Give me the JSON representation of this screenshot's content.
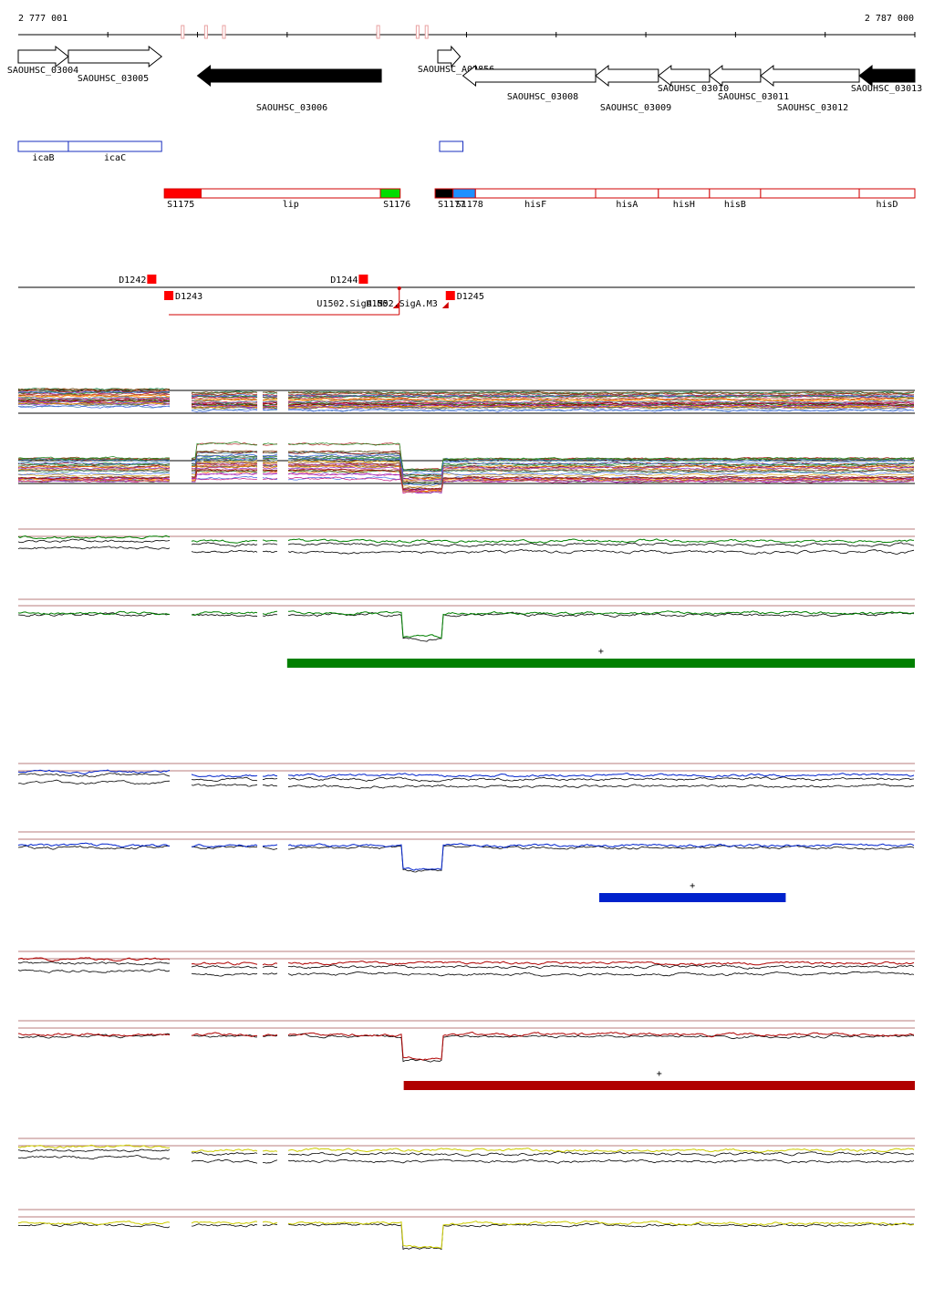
{
  "ruler": {
    "start_label": "2 777 001",
    "end_label": "2 787 000",
    "start_bp": 2777001,
    "end_bp": 2787000
  },
  "genes": [
    {
      "label": "SAOUHSC_03004",
      "start": 2777001,
      "end": 2777560,
      "strand": "+",
      "filled": false
    },
    {
      "label": "SAOUHSC_03005",
      "start": 2777560,
      "end": 2778600,
      "strand": "+",
      "filled": false
    },
    {
      "label": "SAOUHSC_03006",
      "start": 2779000,
      "end": 2781050,
      "strand": "-",
      "filled": true
    },
    {
      "label": "SAOUHSC_A02856",
      "start": 2781680,
      "end": 2781930,
      "strand": "+",
      "filled": false
    },
    {
      "label": "SAOUHSC_03008",
      "start": 2781960,
      "end": 2783440,
      "strand": "-",
      "filled": false
    },
    {
      "label": "SAOUHSC_03009",
      "start": 2783440,
      "end": 2784140,
      "strand": "-",
      "filled": false
    },
    {
      "label": "SAOUHSC_03010",
      "start": 2784140,
      "end": 2784710,
      "strand": "-",
      "filled": false
    },
    {
      "label": "SAOUHSC_03011",
      "start": 2784710,
      "end": 2785280,
      "strand": "-",
      "filled": false
    },
    {
      "label": "SAOUHSC_03012",
      "start": 2785280,
      "end": 2786380,
      "strand": "-",
      "filled": false
    },
    {
      "label": "SAOUHSC_03013",
      "start": 2786380,
      "end": 2787000,
      "strand": "-",
      "filled": true
    }
  ],
  "operons": [
    {
      "label": "icaB",
      "start": 2777001,
      "end": 2777560
    },
    {
      "label": "icaC",
      "start": 2777560,
      "end": 2778600
    },
    {
      "label": "",
      "start": 2781700,
      "end": 2781960
    }
  ],
  "segments": [
    {
      "label": "S1175",
      "start": 2778630,
      "end": 2779040,
      "fill": "#ff0000"
    },
    {
      "label": "lip",
      "start": 2779040,
      "end": 2781040,
      "fill": "#ffffff"
    },
    {
      "label": "S1176",
      "start": 2781040,
      "end": 2781260,
      "fill": "#00dd00"
    },
    {
      "label": "S1177",
      "start": 2781650,
      "end": 2781850,
      "fill": "#000000"
    },
    {
      "label": "S1178",
      "start": 2781850,
      "end": 2782100,
      "fill": "#1e90ff"
    },
    {
      "label": "hisF",
      "start": 2782100,
      "end": 2783440,
      "fill": "#ffffff"
    },
    {
      "label": "hisA",
      "start": 2783440,
      "end": 2784140,
      "fill": "#ffffff"
    },
    {
      "label": "hisH",
      "start": 2784140,
      "end": 2784710,
      "fill": "#ffffff"
    },
    {
      "label": "hisB",
      "start": 2784710,
      "end": 2785280,
      "fill": "#ffffff"
    },
    {
      "label": "",
      "start": 2785280,
      "end": 2786380,
      "fill": "#ffffff"
    },
    {
      "label": "hisD",
      "start": 2786380,
      "end": 2787000,
      "fill": "#ffffff"
    }
  ],
  "downstream_features": [
    {
      "label": "D1242",
      "pos": 2778490,
      "side": "above"
    },
    {
      "label": "D1243",
      "pos": 2778680,
      "side": "below"
    },
    {
      "label": "D1244",
      "pos": 2780850,
      "side": "above"
    },
    {
      "label": "D1245",
      "pos": 2781820,
      "side": "below"
    }
  ],
  "sigma_sites": [
    {
      "label": "U1502.SigA.M5",
      "pos": 2781250
    },
    {
      "label": "U1502.SigA.M3",
      "pos": 2781800
    }
  ],
  "gaps_bp": [
    [
      2778700,
      2778920
    ],
    [
      2779680,
      2779720
    ],
    [
      2779900,
      2780000
    ]
  ],
  "panels": [
    {
      "name": "green",
      "color": "#008000",
      "bar_label": "+",
      "bar_start": 2780000,
      "bar_end": 2787000
    },
    {
      "name": "blue",
      "color": "#0022cc",
      "bar_label": "+",
      "bar_start": 2783480,
      "bar_end": 2785560
    },
    {
      "name": "red",
      "color": "#b00000",
      "bar_label": "+",
      "bar_start": 2781300,
      "bar_end": 2787000
    },
    {
      "name": "yellow",
      "color": "#cccc00",
      "bar_label": "",
      "bar_start": null,
      "bar_end": null
    }
  ]
}
